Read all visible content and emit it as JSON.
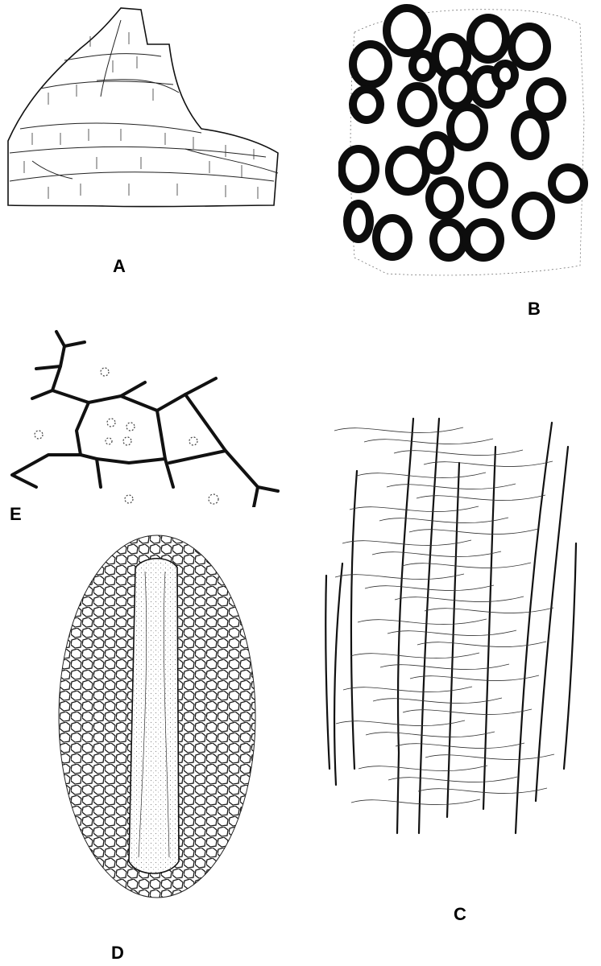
{
  "figures": {
    "a": {
      "label": "A"
    },
    "b": {
      "label": "B"
    },
    "c": {
      "label": "C"
    },
    "d": {
      "label": "D"
    },
    "e": {
      "label": "E"
    }
  },
  "colors": {
    "ink": "#111111",
    "paper": "#ffffff"
  }
}
